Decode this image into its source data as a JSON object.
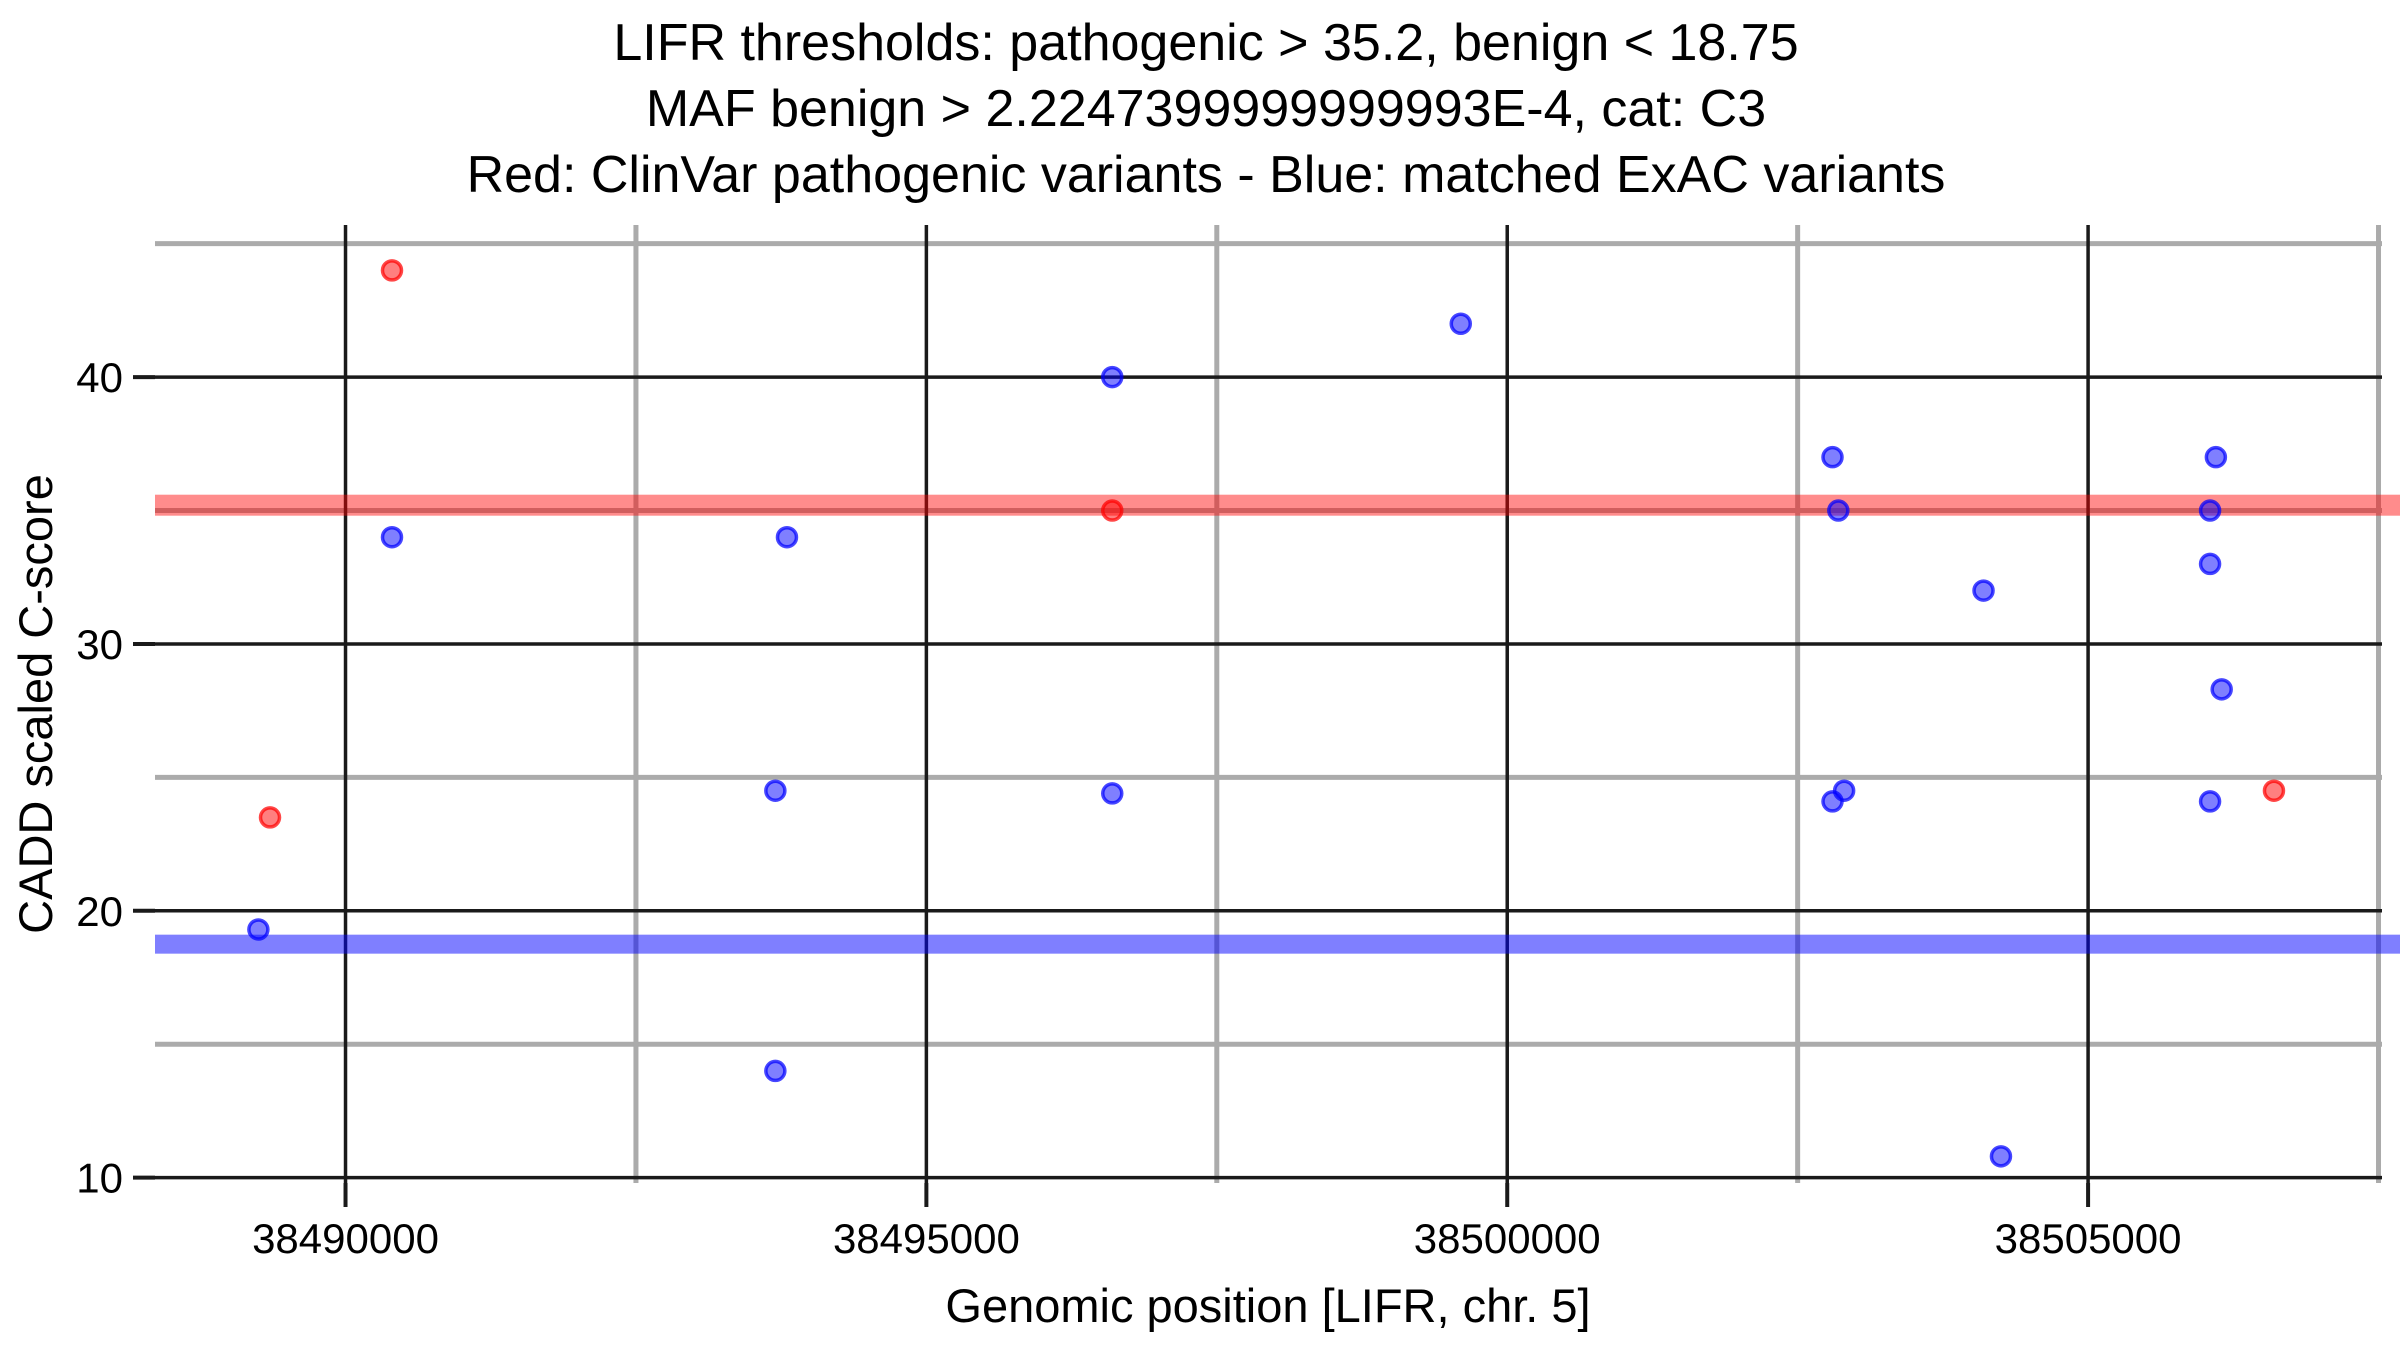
{
  "title": {
    "line1": "LIFR thresholds: pathogenic > 35.2, benign < 18.75",
    "line2": "MAF benign > 2.2247399999999993E-4, cat: C3",
    "line3": "Red: ClinVar pathogenic variants - Blue: matched ExAC variants"
  },
  "chart_data": {
    "type": "scatter",
    "xlabel": "Genomic position [LIFR, chr. 5]",
    "ylabel": "CADD scaled C-score",
    "xlim": [
      38488360,
      38507530
    ],
    "ylim": [
      9.8,
      45.7
    ],
    "x_ticks": [
      38490000,
      38495000,
      38500000,
      38505000
    ],
    "x_tick_labels": [
      "38490000",
      "38495000",
      "38500000",
      "38505000"
    ],
    "x_minor_gridlines": [
      38492500,
      38497500,
      38502500,
      38507500
    ],
    "y_ticks": [
      10,
      20,
      30,
      40
    ],
    "y_tick_labels": [
      "10",
      "20",
      "30",
      "40"
    ],
    "y_minor_gridlines": [
      15,
      25,
      35,
      45
    ],
    "grid": true,
    "legend_position": "none",
    "threshold_lines": [
      {
        "name": "pathogenic-threshold",
        "value": 35.2,
        "color": "#FF0000",
        "opacity": 0.45
      },
      {
        "name": "benign-threshold",
        "value": 18.75,
        "color": "#0000FF",
        "opacity": 0.5
      }
    ],
    "series": [
      {
        "name": "ClinVar pathogenic variants",
        "color": "#FF0000",
        "points": [
          [
            38490400,
            44.0
          ],
          [
            38496600,
            35.0
          ],
          [
            38489350,
            23.5
          ],
          [
            38506600,
            24.5
          ]
        ]
      },
      {
        "name": "matched ExAC variants",
        "color": "#0000FF",
        "points": [
          [
            38496600,
            40.0
          ],
          [
            38499600,
            42.0
          ],
          [
            38490400,
            34.0
          ],
          [
            38493800,
            34.0
          ],
          [
            38502800,
            37.0
          ],
          [
            38506100,
            37.0
          ],
          [
            38502850,
            35.0
          ],
          [
            38506050,
            35.0
          ],
          [
            38506050,
            33.0
          ],
          [
            38504100,
            32.0
          ],
          [
            38506150,
            28.3
          ],
          [
            38493700,
            24.5
          ],
          [
            38496600,
            24.4
          ],
          [
            38502900,
            24.5
          ],
          [
            38502800,
            24.1
          ],
          [
            38506050,
            24.1
          ],
          [
            38489250,
            19.3
          ],
          [
            38493700,
            14.0
          ],
          [
            38504250,
            10.8
          ]
        ]
      }
    ]
  },
  "style_colors": {
    "major_gridline": "#1A1A1A",
    "minor_gridline": "#ABABAB",
    "tick_mark": "#1A1A1A",
    "text": "#000000",
    "background": "#FFFFFF"
  }
}
